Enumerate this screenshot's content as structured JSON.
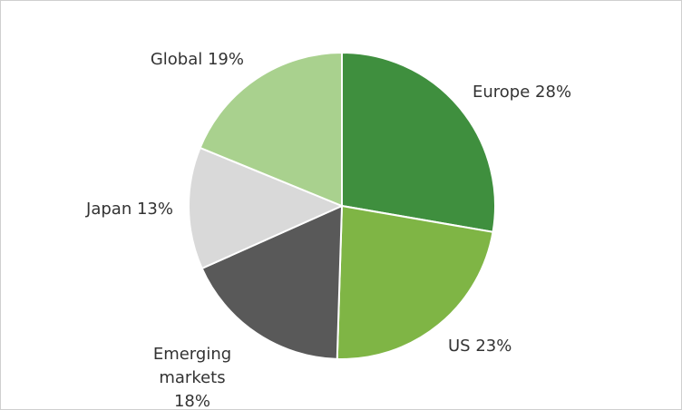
{
  "chart_data": {
    "type": "pie",
    "categories": [
      "Europe",
      "US",
      "Emerging markets",
      "Japan",
      "Global"
    ],
    "values": [
      28,
      23,
      18,
      13,
      19
    ],
    "value_labels": [
      "28%",
      "23%",
      "18%",
      "13%",
      "19%"
    ],
    "colors": [
      "#3f8f3e",
      "#7fb545",
      "#595959",
      "#d9d9d9",
      "#a9d18e"
    ]
  }
}
